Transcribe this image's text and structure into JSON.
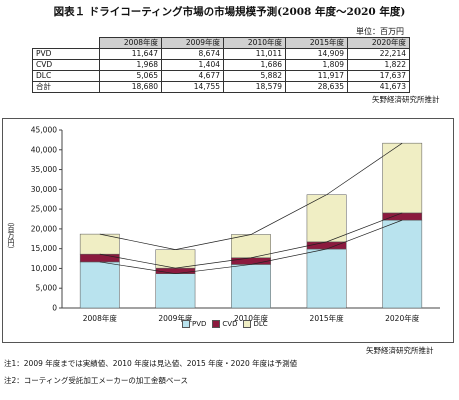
{
  "title": "図表１ ドライコーティング市場の市場規模予測(2008 年度～2020 年度)",
  "unit_label": "単位：百万円",
  "table": {
    "headers": [
      "2008年度",
      "2009年度",
      "2010年度",
      "2015年度",
      "2020年度"
    ],
    "rows": [
      {
        "label": "PVD",
        "values": [
          "11,647",
          "8,674",
          "11,011",
          "14,909",
          "22,214"
        ]
      },
      {
        "label": "CVD",
        "values": [
          "1,968",
          "1,404",
          "1,686",
          "1,809",
          "1,822"
        ]
      },
      {
        "label": "DLC",
        "values": [
          "5,065",
          "4,677",
          "5,882",
          "11,917",
          "17,637"
        ]
      },
      {
        "label": "合計",
        "values": [
          "18,680",
          "14,755",
          "18,579",
          "28,635",
          "41,673"
        ]
      }
    ]
  },
  "source_top": "矢野経済研究所推計",
  "source_bottom": "矢野経済研究所推計",
  "notes": [
    "注1：2009 年度までは実績値、2010 年度は見込値、2015 年度・2020 年度は予測値",
    "注2：コーティング受託加工メーカーの加工金額ベース"
  ],
  "colors": {
    "PVD": "#b9e3ee",
    "CVD": "#8b1a3e",
    "DLC": "#f0eec4"
  },
  "chart_data": {
    "type": "bar",
    "stacked": true,
    "categories": [
      "2008年度",
      "2009年度",
      "2010年度",
      "2015年度",
      "2020年度"
    ],
    "series": [
      {
        "name": "PVD",
        "values": [
          11647,
          8674,
          11011,
          14909,
          22214
        ]
      },
      {
        "name": "CVD",
        "values": [
          1968,
          1404,
          1686,
          1809,
          1822
        ]
      },
      {
        "name": "DLC",
        "values": [
          5065,
          4677,
          5882,
          11917,
          17637
        ]
      }
    ],
    "ylabel": "（百万円）",
    "ylim": [
      0,
      45000
    ],
    "yticks": [
      "0",
      "5,000",
      "10,000",
      "15,000",
      "20,000",
      "25,000",
      "30,000",
      "35,000",
      "40,000",
      "45,000"
    ],
    "legend": [
      "PVD",
      "CVD",
      "DLC"
    ],
    "legend_position": "bottom",
    "grid": false,
    "series_lines": true
  }
}
